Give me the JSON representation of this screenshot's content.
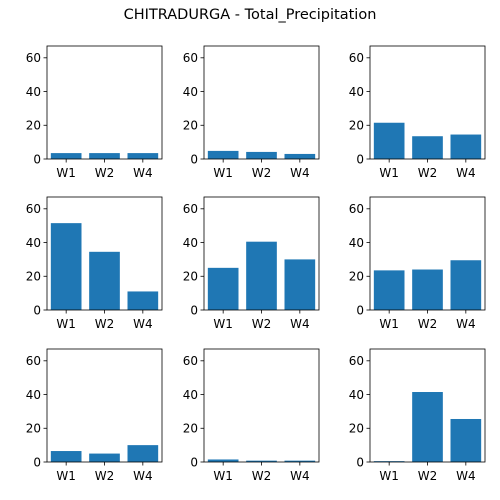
{
  "chart_data": {
    "type": "bar",
    "title": "CHITRADURGA - Total_Precipitation",
    "layout": "3x3 grid",
    "ylim": [
      0,
      67
    ],
    "yticks": [
      0,
      20,
      40,
      60
    ],
    "categories": [
      "W1",
      "W2",
      "W4"
    ],
    "bar_color": "#1f77b4",
    "panels": [
      {
        "values": [
          3.5,
          3.5,
          3.5
        ]
      },
      {
        "values": [
          4.8,
          4.2,
          3.0
        ]
      },
      {
        "values": [
          21.5,
          13.5,
          14.5
        ]
      },
      {
        "values": [
          51.5,
          34.5,
          11.0
        ]
      },
      {
        "values": [
          25.0,
          40.5,
          30.0
        ]
      },
      {
        "values": [
          23.5,
          24.0,
          29.5
        ]
      },
      {
        "values": [
          6.5,
          5.0,
          10.0
        ]
      },
      {
        "values": [
          1.5,
          0.8,
          0.8
        ]
      },
      {
        "values": [
          0.5,
          41.5,
          25.5
        ]
      }
    ]
  }
}
